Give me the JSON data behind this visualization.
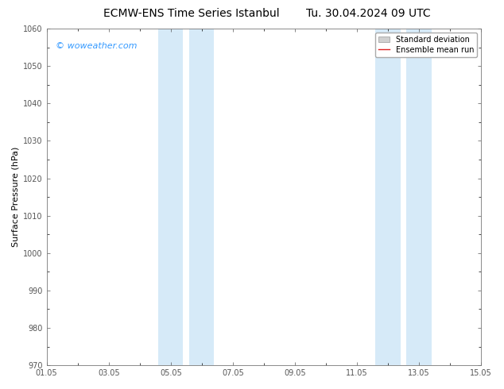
{
  "title": "ECMW-ENS Time Series Istanbul",
  "title_right": "Tu. 30.04.2024 09 UTC",
  "ylabel": "Surface Pressure (hPa)",
  "ylim": [
    970,
    1060
  ],
  "yticks": [
    970,
    980,
    990,
    1000,
    1010,
    1020,
    1030,
    1040,
    1050,
    1060
  ],
  "xlim_start": 0,
  "xlim_end": 14,
  "xtick_labels": [
    "01.05",
    "03.05",
    "05.05",
    "07.05",
    "09.05",
    "11.05",
    "13.05",
    "15.05"
  ],
  "xtick_positions": [
    0,
    2,
    4,
    6,
    8,
    10,
    12,
    14
  ],
  "shaded_regions": [
    {
      "x_start": 3.6,
      "x_end": 4.4
    },
    {
      "x_start": 4.6,
      "x_end": 5.4
    },
    {
      "x_start": 10.6,
      "x_end": 11.4
    },
    {
      "x_start": 11.6,
      "x_end": 12.4
    }
  ],
  "shaded_color": "#d6eaf8",
  "background_color": "#ffffff",
  "plot_bg_color": "#ffffff",
  "tick_color": "#555555",
  "spine_color": "#777777",
  "watermark_text": "© woweather.com",
  "watermark_color": "#3399ff",
  "watermark_fontsize": 8,
  "legend_std_label": "Standard deviation",
  "legend_mean_label": "Ensemble mean run",
  "legend_std_facecolor": "#d0d0d0",
  "legend_std_edgecolor": "#999999",
  "legend_mean_color": "#dd2222",
  "title_fontsize": 10,
  "axis_label_fontsize": 8,
  "tick_fontsize": 7,
  "legend_fontsize": 7
}
